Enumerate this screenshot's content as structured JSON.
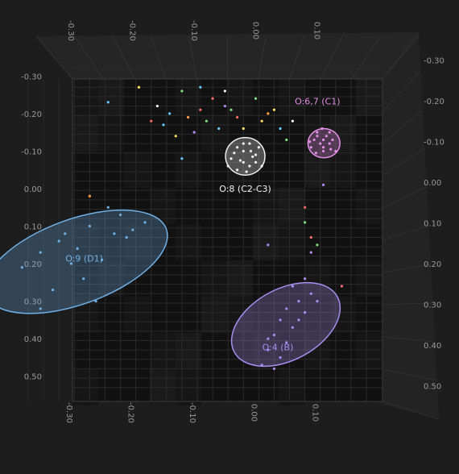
{
  "chart_data": {
    "type": "scatter",
    "view": "3D scatter plot viewed from the top (PCA-style score plot)",
    "grid": true,
    "background_color": "#1d1d1d",
    "x_axis": {
      "range": [
        -0.35,
        0.2
      ],
      "top_ticks": [
        "-0.30",
        "-0.20",
        "-0.10",
        "0.00",
        "0.10"
      ],
      "bottom_ticks": [
        "-0.30",
        "-0.20",
        "-0.10",
        "0.00",
        "0.10"
      ]
    },
    "y_axis": {
      "range": [
        -0.32,
        0.55
      ],
      "left_ticks": [
        "-0.30",
        "-0.20",
        "-0.10",
        "0.00",
        "0.10",
        "0.20",
        "0.30",
        "0.40",
        "0.50"
      ],
      "right_ticks": [
        "-0.30",
        "-0.20",
        "-0.10",
        "0.00",
        "0.10",
        "0.20",
        "0.30",
        "0.40",
        "0.50"
      ]
    },
    "clusters": [
      {
        "label": "O:6,7 (C1)",
        "color": "#e48fe6",
        "center": [
          0.131,
          -0.121
        ],
        "rx": 0.026,
        "ry": 0.039,
        "points": [
          [
            0.12,
            -0.14
          ],
          [
            0.13,
            -0.13
          ],
          [
            0.14,
            -0.12
          ],
          [
            0.11,
            -0.11
          ],
          [
            0.13,
            -0.11
          ],
          [
            0.15,
            -0.1
          ],
          [
            0.12,
            -0.15
          ],
          [
            0.14,
            -0.15
          ],
          [
            0.13,
            -0.1
          ],
          [
            0.115,
            -0.13
          ],
          [
            0.145,
            -0.13
          ],
          [
            0.125,
            -0.12
          ],
          [
            0.135,
            -0.14
          ],
          [
            0.118,
            -0.095
          ],
          [
            0.142,
            -0.105
          ],
          [
            0.128,
            -0.16
          ],
          [
            0.108,
            -0.125
          ]
        ]
      },
      {
        "label": "O:8 (C2-C3)",
        "color": "#f0f0f0",
        "center": [
          0.003,
          -0.086
        ],
        "rx": 0.032,
        "ry": 0.05,
        "points": [
          [
            -0.01,
            -0.11
          ],
          [
            0.0,
            -0.1
          ],
          [
            0.01,
            -0.12
          ],
          [
            0.02,
            -0.09
          ],
          [
            -0.02,
            -0.08
          ],
          [
            0.0,
            -0.07
          ],
          [
            0.01,
            -0.06
          ],
          [
            0.02,
            -0.07
          ],
          [
            -0.01,
            -0.05
          ],
          [
            0.0,
            -0.12
          ],
          [
            0.015,
            -0.085
          ],
          [
            -0.015,
            -0.095
          ],
          [
            0.025,
            -0.11
          ],
          [
            0.005,
            -0.045
          ],
          [
            -0.005,
            -0.075
          ],
          [
            0.03,
            -0.06
          ],
          [
            -0.025,
            -0.06
          ],
          [
            0.012,
            -0.1
          ]
        ]
      },
      {
        "label": "O:9 (D1)",
        "color": "#6fb0e6",
        "center": [
          -0.272,
          0.195
        ],
        "rx": 0.156,
        "ry": 0.113,
        "points": [
          [
            -0.22,
            0.05
          ],
          [
            -0.2,
            0.07
          ],
          [
            -0.25,
            0.1
          ],
          [
            -0.18,
            0.11
          ],
          [
            -0.21,
            0.12
          ],
          [
            -0.3,
            0.14
          ],
          [
            -0.27,
            0.16
          ],
          [
            -0.33,
            0.17
          ],
          [
            -0.23,
            0.19
          ],
          [
            -0.28,
            0.2
          ],
          [
            -0.36,
            0.21
          ],
          [
            -0.26,
            0.24
          ],
          [
            -0.31,
            0.27
          ],
          [
            -0.24,
            0.3
          ],
          [
            -0.33,
            0.32
          ],
          [
            -0.19,
            0.13
          ],
          [
            -0.16,
            0.09
          ],
          [
            -0.29,
            0.12
          ]
        ]
      },
      {
        "label": "O:4 (B)",
        "color": "#a78ff0",
        "center": [
          0.069,
          0.362
        ],
        "rx": 0.058,
        "ry": 0.156,
        "points": [
          [
            0.1,
            0.24
          ],
          [
            0.08,
            0.26
          ],
          [
            0.11,
            0.28
          ],
          [
            0.09,
            0.3
          ],
          [
            0.07,
            0.32
          ],
          [
            0.1,
            0.33
          ],
          [
            0.06,
            0.35
          ],
          [
            0.08,
            0.37
          ],
          [
            0.05,
            0.39
          ],
          [
            0.07,
            0.41
          ],
          [
            0.04,
            0.43
          ],
          [
            0.06,
            0.45
          ],
          [
            0.03,
            0.47
          ],
          [
            0.05,
            0.48
          ],
          [
            0.09,
            0.35
          ],
          [
            0.12,
            0.3
          ],
          [
            0.04,
            0.4
          ]
        ]
      }
    ],
    "unlabeled_points": [
      {
        "x": -0.17,
        "y": -0.27,
        "color": "#ffe066"
      },
      {
        "x": -0.1,
        "y": -0.26,
        "color": "#7ee07e"
      },
      {
        "x": -0.07,
        "y": -0.27,
        "color": "#66ccff"
      },
      {
        "x": -0.05,
        "y": -0.24,
        "color": "#ff6b6b"
      },
      {
        "x": -0.03,
        "y": -0.22,
        "color": "#b58cff"
      },
      {
        "x": 0.02,
        "y": -0.24,
        "color": "#7ee07e"
      },
      {
        "x": 0.05,
        "y": -0.21,
        "color": "#ffe066"
      },
      {
        "x": -0.12,
        "y": -0.2,
        "color": "#66ccff"
      },
      {
        "x": -0.09,
        "y": -0.19,
        "color": "#ff9f43"
      },
      {
        "x": -0.06,
        "y": -0.18,
        "color": "#7ee07e"
      },
      {
        "x": -0.01,
        "y": -0.19,
        "color": "#ff6b6b"
      },
      {
        "x": 0.03,
        "y": -0.18,
        "color": "#ffe066"
      },
      {
        "x": 0.06,
        "y": -0.16,
        "color": "#66ccff"
      },
      {
        "x": 0.07,
        "y": -0.13,
        "color": "#7ee07e"
      },
      {
        "x": -0.14,
        "y": -0.22,
        "color": "#ffffff"
      },
      {
        "x": -0.15,
        "y": -0.18,
        "color": "#ff6b6b"
      },
      {
        "x": -0.11,
        "y": -0.14,
        "color": "#ffe066"
      },
      {
        "x": -0.08,
        "y": -0.15,
        "color": "#b58cff"
      },
      {
        "x": -0.04,
        "y": -0.16,
        "color": "#66ccff"
      },
      {
        "x": 0.04,
        "y": -0.2,
        "color": "#ff9f43"
      },
      {
        "x": -0.02,
        "y": -0.21,
        "color": "#7ee07e"
      },
      {
        "x": -0.13,
        "y": -0.17,
        "color": "#66ccff"
      },
      {
        "x": -0.22,
        "y": -0.23,
        "color": "#66ccff"
      },
      {
        "x": -0.03,
        "y": -0.26,
        "color": "#ffffff"
      },
      {
        "x": 0.0,
        "y": -0.16,
        "color": "#ffe066"
      },
      {
        "x": 0.08,
        "y": -0.18,
        "color": "#ffffff"
      },
      {
        "x": -0.07,
        "y": -0.21,
        "color": "#ff6b6b"
      },
      {
        "x": -0.25,
        "y": 0.02,
        "color": "#ff9f43"
      },
      {
        "x": 0.1,
        "y": 0.05,
        "color": "#ff6b6b"
      },
      {
        "x": 0.1,
        "y": 0.09,
        "color": "#7ee07e"
      },
      {
        "x": 0.11,
        "y": 0.13,
        "color": "#ff6b6b"
      },
      {
        "x": 0.12,
        "y": 0.15,
        "color": "#7ee07e"
      },
      {
        "x": 0.11,
        "y": 0.17,
        "color": "#b58cff"
      },
      {
        "x": 0.04,
        "y": 0.15,
        "color": "#b58cff"
      },
      {
        "x": 0.16,
        "y": 0.26,
        "color": "#ff6b6b"
      },
      {
        "x": 0.13,
        "y": -0.01,
        "color": "#b58cff"
      },
      {
        "x": -0.1,
        "y": -0.08,
        "color": "#66ccff"
      }
    ]
  }
}
